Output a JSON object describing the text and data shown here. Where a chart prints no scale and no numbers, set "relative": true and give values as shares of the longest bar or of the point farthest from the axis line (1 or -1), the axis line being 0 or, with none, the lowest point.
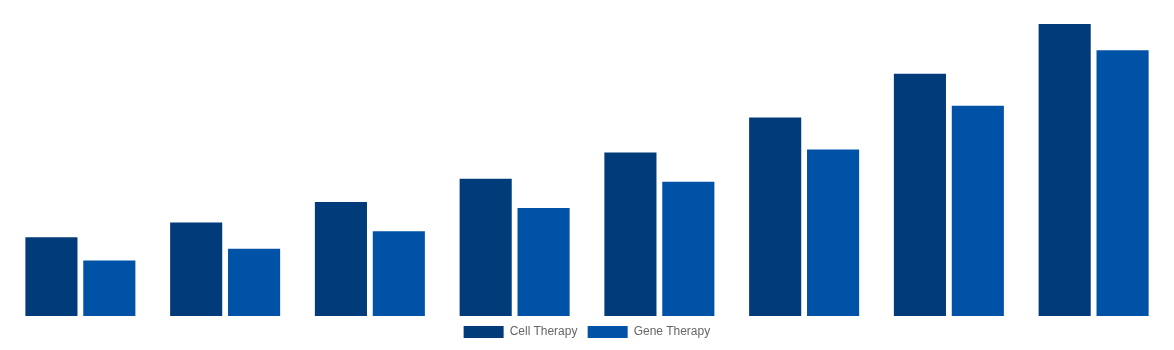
{
  "chart_data": {
    "type": "bar",
    "relative": true,
    "categories": [
      null,
      null,
      null,
      null,
      null,
      null,
      null,
      null
    ],
    "series": [
      {
        "name": "Cell Therapy",
        "color": "#023b7a",
        "values": [
          0.27,
          0.32,
          0.39,
          0.47,
          0.56,
          0.68,
          0.83,
          1
        ]
      },
      {
        "name": "Gene Therapy",
        "color": "#0052a6",
        "values": [
          0.19,
          0.23,
          0.29,
          0.37,
          0.46,
          0.57,
          0.72,
          0.91
        ]
      }
    ],
    "legend": "bottom",
    "grid": false
  }
}
